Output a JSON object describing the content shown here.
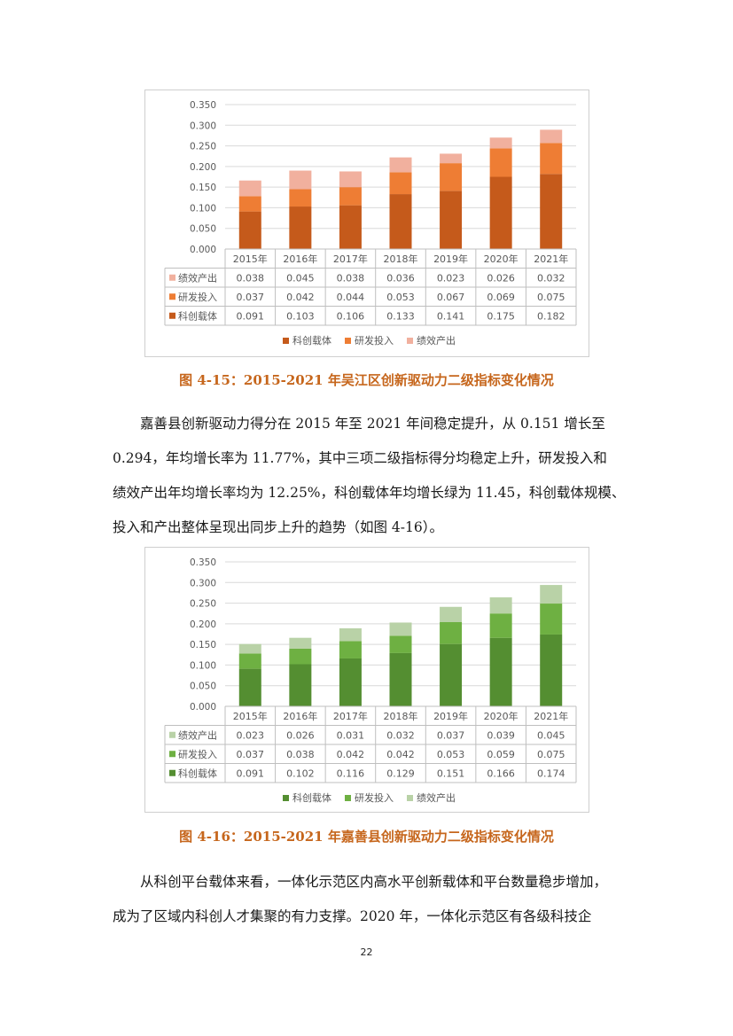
{
  "charts": [
    {
      "axis_ticks": [
        "0.000",
        "0.050",
        "0.100",
        "0.150",
        "0.200",
        "0.250",
        "0.300",
        "0.350"
      ],
      "years": [
        "2015年",
        "2016年",
        "2017年",
        "2018年",
        "2019年",
        "2020年",
        "2021年"
      ],
      "rows": [
        {
          "name": "绩效产出",
          "color": "#f1b09e",
          "values": [
            "0.038",
            "0.045",
            "0.038",
            "0.036",
            "0.023",
            "0.026",
            "0.032"
          ]
        },
        {
          "name": "研发投入",
          "color": "#ee7d34",
          "values": [
            "0.037",
            "0.042",
            "0.044",
            "0.053",
            "0.067",
            "0.069",
            "0.075"
          ]
        },
        {
          "name": "科创载体",
          "color": "#c55a1b",
          "values": [
            "0.091",
            "0.103",
            "0.106",
            "0.133",
            "0.141",
            "0.175",
            "0.182"
          ]
        }
      ],
      "legend": [
        "科创载体",
        "研发投入",
        "绩效产出"
      ]
    },
    {
      "axis_ticks": [
        "0.000",
        "0.050",
        "0.100",
        "0.150",
        "0.200",
        "0.250",
        "0.300",
        "0.350"
      ],
      "years": [
        "2015年",
        "2016年",
        "2017年",
        "2018年",
        "2019年",
        "2020年",
        "2021年"
      ],
      "rows": [
        {
          "name": "绩效产出",
          "color": "#b9d2a7",
          "values": [
            "0.023",
            "0.026",
            "0.031",
            "0.032",
            "0.037",
            "0.039",
            "0.045"
          ]
        },
        {
          "name": "研发投入",
          "color": "#6eb042",
          "values": [
            "0.037",
            "0.038",
            "0.042",
            "0.042",
            "0.053",
            "0.059",
            "0.075"
          ]
        },
        {
          "name": "科创载体",
          "color": "#548e31",
          "values": [
            "0.091",
            "0.102",
            "0.116",
            "0.129",
            "0.151",
            "0.166",
            "0.174"
          ]
        }
      ],
      "legend": [
        "科创载体",
        "研发投入",
        "绩效产出"
      ]
    }
  ],
  "chart_data": [
    {
      "type": "bar",
      "stacked": true,
      "categories": [
        "2015年",
        "2016年",
        "2017年",
        "2018年",
        "2019年",
        "2020年",
        "2021年"
      ],
      "series": [
        {
          "name": "科创载体",
          "values": [
            0.091,
            0.103,
            0.106,
            0.133,
            0.141,
            0.175,
            0.182
          ]
        },
        {
          "name": "研发投入",
          "values": [
            0.037,
            0.042,
            0.044,
            0.053,
            0.067,
            0.069,
            0.075
          ]
        },
        {
          "name": "绩效产出",
          "values": [
            0.038,
            0.045,
            0.038,
            0.036,
            0.023,
            0.026,
            0.032
          ]
        }
      ],
      "ylim": [
        0,
        0.35
      ],
      "grid": true,
      "legend_position": "bottom"
    },
    {
      "type": "bar",
      "stacked": true,
      "categories": [
        "2015年",
        "2016年",
        "2017年",
        "2018年",
        "2019年",
        "2020年",
        "2021年"
      ],
      "series": [
        {
          "name": "科创载体",
          "values": [
            0.091,
            0.102,
            0.116,
            0.129,
            0.151,
            0.166,
            0.174
          ]
        },
        {
          "name": "研发投入",
          "values": [
            0.037,
            0.038,
            0.042,
            0.042,
            0.053,
            0.059,
            0.075
          ]
        },
        {
          "name": "绩效产出",
          "values": [
            0.023,
            0.026,
            0.031,
            0.032,
            0.037,
            0.039,
            0.045
          ]
        }
      ],
      "ylim": [
        0,
        0.35
      ],
      "grid": true,
      "legend_position": "bottom"
    }
  ],
  "captions": {
    "fig1": "图 4-15：2015-2021 年吴江区创新驱动力二级指标变化情况",
    "fig2": "图 4-16：2015-2021 年嘉善县创新驱动力二级指标变化情况"
  },
  "paragraph1": [
    "嘉善县创新驱动力得分在 2015 年至 2021 年间稳定提升，从 0.151 增长至",
    "0.294，年均增长率为 11.77%，其中三项二级指标得分均稳定上升，研发投入和",
    "绩效产出年均增长率均为 12.25%，科创载体年均增长绿为 11.45，科创载体规模、",
    "投入和产出整体呈现出同步上升的趋势（如图 4-16）。"
  ],
  "paragraph2": [
    "从科创平台载体来看，一体化示范区内高水平创新载体和平台数量稳步增加，",
    "成为了区域内科创人才集聚的有力支撑。2020 年，一体化示范区有各级科技企"
  ],
  "page_number": "22"
}
